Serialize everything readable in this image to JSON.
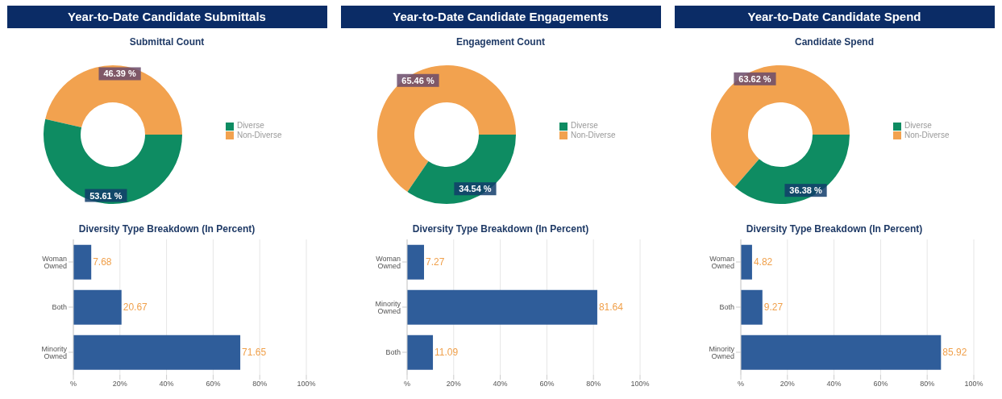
{
  "chart_data": [
    {
      "type": "donut",
      "title": "Year-to-Date Candidate Submittals",
      "subtitle": "Submittal Count",
      "categories": [
        "Non-Diverse",
        "Diverse"
      ],
      "values": [
        46.39,
        53.61
      ],
      "colors": [
        "#f2a24f",
        "#0e8c62"
      ],
      "value_labels": [
        "46.39 %",
        "53.61 %"
      ],
      "legend": "right"
    },
    {
      "type": "donut",
      "title": "Year-to-Date Candidate Engagements",
      "subtitle": "Engagement Count",
      "categories": [
        "Non-Diverse",
        "Diverse"
      ],
      "values": [
        65.46,
        34.54
      ],
      "colors": [
        "#f2a24f",
        "#0e8c62"
      ],
      "value_labels": [
        "65.46 %",
        "34.54 %"
      ],
      "legend": "right"
    },
    {
      "type": "donut",
      "title": "Year-to-Date Candidate Spend",
      "subtitle": "Candidate Spend",
      "categories": [
        "Non-Diverse",
        "Diverse"
      ],
      "values": [
        63.62,
        36.38
      ],
      "colors": [
        "#f2a24f",
        "#0e8c62"
      ],
      "value_labels": [
        "63.62 %",
        "36.38 %"
      ],
      "legend": "right"
    },
    {
      "type": "bar",
      "orientation": "horizontal",
      "title": "Diversity Type Breakdown (In Percent)",
      "categories": [
        "Woman Owned",
        "Both",
        "Minority Owned"
      ],
      "values": [
        7.68,
        20.67,
        71.65
      ],
      "color": "#2f5d9a",
      "xlim": [
        0,
        100
      ],
      "xticks": [
        {
          "value": 0,
          "label": "%"
        },
        {
          "value": 20,
          "label": "20%"
        },
        {
          "value": 40,
          "label": "40%"
        },
        {
          "value": 60,
          "label": "60%"
        },
        {
          "value": 80,
          "label": "80%"
        },
        {
          "value": 100,
          "label": "100%"
        }
      ],
      "grid": "x",
      "data_labels": true
    },
    {
      "type": "bar",
      "orientation": "horizontal",
      "title": "Diversity Type Breakdown (In Percent)",
      "categories": [
        "Woman Owned",
        "Minority Owned",
        "Both"
      ],
      "values": [
        7.27,
        81.64,
        11.09
      ],
      "color": "#2f5d9a",
      "xlim": [
        0,
        100
      ],
      "xticks": [
        {
          "value": 0,
          "label": "%"
        },
        {
          "value": 20,
          "label": "20%"
        },
        {
          "value": 40,
          "label": "40%"
        },
        {
          "value": 60,
          "label": "60%"
        },
        {
          "value": 80,
          "label": "80%"
        },
        {
          "value": 100,
          "label": "100%"
        }
      ],
      "grid": "x",
      "data_labels": true
    },
    {
      "type": "bar",
      "orientation": "horizontal",
      "title": "Diversity Type Breakdown (In Percent)",
      "categories": [
        "Woman Owned",
        "Both",
        "Minority Owned"
      ],
      "values": [
        4.82,
        9.27,
        85.92
      ],
      "color": "#2f5d9a",
      "xlim": [
        0,
        100
      ],
      "xticks": [
        {
          "value": 0,
          "label": "%"
        },
        {
          "value": 20,
          "label": "20%"
        },
        {
          "value": 40,
          "label": "40%"
        },
        {
          "value": 60,
          "label": "60%"
        },
        {
          "value": 80,
          "label": "80%"
        },
        {
          "value": 100,
          "label": "100%"
        }
      ],
      "grid": "x",
      "data_labels": true
    }
  ]
}
